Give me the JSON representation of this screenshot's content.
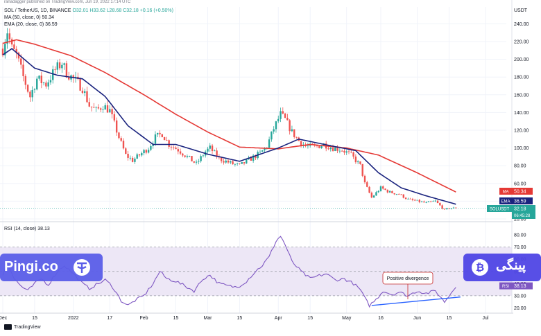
{
  "top_caption": "ranadagger published on TradingView.com, Jun 19, 2022 17:14 UTC",
  "header": {
    "symbol_line": "SOL / TetherUS, 1D, BINANCE",
    "ohlc": "O32.01 H33.62 L28.68 C32.18 +0.16 (+0.50%)",
    "ma_line": "MA (50, close, 0) 50.34",
    "ema_line": "EMA (20, close, 0) 36.59"
  },
  "rsi_header": "RSI (14, close) 38.13",
  "footer": {
    "tv_logo": "TradingView"
  },
  "watermark": {
    "left": "Pingi.co",
    "right": "پینگی"
  },
  "colors": {
    "up": "#26a69a",
    "down": "#ef5350",
    "ma": "#e53935",
    "ema": "#1a237e",
    "rsi": "#7e57c2",
    "band": "#ede7f6",
    "trendline": "#2962ff",
    "grid": "#f0f3fa",
    "banner_left": "#5b5ee8",
    "banner_right": "#4f46e5"
  },
  "chart_data": [
    {
      "type": "candlestick",
      "title": "SOL / TetherUS, 1D, BINANCE",
      "currency": "USDT",
      "ylim": [
        20,
        245
      ],
      "y_ticks": [
        20,
        40,
        60,
        80,
        100,
        120,
        140,
        160,
        180,
        200,
        220,
        240
      ],
      "x_tick_labels": [
        "Dec",
        "15",
        "2022",
        "17",
        "Feb",
        "15",
        "Mar",
        "15",
        "Apr",
        "15",
        "May",
        "16",
        "Jun",
        "15",
        "Jul"
      ],
      "x_tick_dates": [
        "2021-12-01",
        "2021-12-15",
        "2022-01-01",
        "2022-01-17",
        "2022-02-01",
        "2022-02-15",
        "2022-03-01",
        "2022-03-15",
        "2022-04-01",
        "2022-04-15",
        "2022-05-01",
        "2022-05-16",
        "2022-06-01",
        "2022-06-15",
        "2022-07-01"
      ],
      "x_range": [
        "2021-12-01",
        "2022-07-01"
      ],
      "close_anchors": [
        [
          "2021-12-01",
          212
        ],
        [
          "2021-12-03",
          232
        ],
        [
          "2021-12-05",
          212
        ],
        [
          "2021-12-07",
          205
        ],
        [
          "2021-12-10",
          180
        ],
        [
          "2021-12-13",
          158
        ],
        [
          "2021-12-16",
          178
        ],
        [
          "2021-12-20",
          172
        ],
        [
          "2021-12-24",
          188
        ],
        [
          "2021-12-27",
          196
        ],
        [
          "2021-12-29",
          185
        ],
        [
          "2022-01-01",
          178
        ],
        [
          "2022-01-05",
          168
        ],
        [
          "2022-01-08",
          148
        ],
        [
          "2022-01-11",
          142
        ],
        [
          "2022-01-14",
          148
        ],
        [
          "2022-01-17",
          142
        ],
        [
          "2022-01-21",
          112
        ],
        [
          "2022-01-24",
          92
        ],
        [
          "2022-01-27",
          86
        ],
        [
          "2022-01-30",
          92
        ],
        [
          "2022-02-03",
          100
        ],
        [
          "2022-02-06",
          112
        ],
        [
          "2022-02-09",
          116
        ],
        [
          "2022-02-12",
          104
        ],
        [
          "2022-02-16",
          98
        ],
        [
          "2022-02-20",
          90
        ],
        [
          "2022-02-24",
          82
        ],
        [
          "2022-02-28",
          96
        ],
        [
          "2022-03-02",
          100
        ],
        [
          "2022-03-06",
          88
        ],
        [
          "2022-03-12",
          82
        ],
        [
          "2022-03-15",
          80
        ],
        [
          "2022-03-20",
          88
        ],
        [
          "2022-03-24",
          94
        ],
        [
          "2022-03-27",
          102
        ],
        [
          "2022-03-30",
          122
        ],
        [
          "2022-04-02",
          138
        ],
        [
          "2022-04-04",
          132
        ],
        [
          "2022-04-07",
          118
        ],
        [
          "2022-04-10",
          108
        ],
        [
          "2022-04-13",
          102
        ],
        [
          "2022-04-17",
          101
        ],
        [
          "2022-04-21",
          104
        ],
        [
          "2022-04-25",
          100
        ],
        [
          "2022-04-29",
          98
        ],
        [
          "2022-05-03",
          92
        ],
        [
          "2022-05-07",
          80
        ],
        [
          "2022-05-09",
          60
        ],
        [
          "2022-05-12",
          44
        ],
        [
          "2022-05-16",
          55
        ],
        [
          "2022-05-20",
          50
        ],
        [
          "2022-05-24",
          48
        ],
        [
          "2022-05-28",
          42
        ],
        [
          "2022-06-01",
          40
        ],
        [
          "2022-06-05",
          38
        ],
        [
          "2022-06-09",
          40
        ],
        [
          "2022-06-13",
          30
        ],
        [
          "2022-06-15",
          32
        ],
        [
          "2022-06-18",
          32.18
        ]
      ],
      "indicators": [
        {
          "name": "MA (50, close, 0)",
          "value": 50.34,
          "color": "#e53935",
          "anchors": [
            [
              "2021-12-01",
              218
            ],
            [
              "2021-12-07",
              222
            ],
            [
              "2021-12-15",
              217
            ],
            [
              "2021-12-31",
              204
            ],
            [
              "2022-01-15",
              185
            ],
            [
              "2022-02-01",
              160
            ],
            [
              "2022-02-15",
              138
            ],
            [
              "2022-03-01",
              118
            ],
            [
              "2022-03-15",
              101
            ],
            [
              "2022-04-01",
              99
            ],
            [
              "2022-04-15",
              104
            ],
            [
              "2022-05-01",
              100
            ],
            [
              "2022-05-15",
              92
            ],
            [
              "2022-06-01",
              72
            ],
            [
              "2022-06-18",
              50.34
            ]
          ]
        },
        {
          "name": "EMA (20, close, 0)",
          "value": 36.59,
          "color": "#1a237e",
          "anchors": [
            [
              "2021-12-01",
              205
            ],
            [
              "2021-12-05",
              212
            ],
            [
              "2021-12-15",
              190
            ],
            [
              "2021-12-25",
              182
            ],
            [
              "2022-01-05",
              178
            ],
            [
              "2022-01-15",
              158
            ],
            [
              "2022-01-25",
              125
            ],
            [
              "2022-02-05",
              104
            ],
            [
              "2022-02-15",
              104
            ],
            [
              "2022-03-01",
              93
            ],
            [
              "2022-03-15",
              85
            ],
            [
              "2022-04-01",
              100
            ],
            [
              "2022-04-10",
              110
            ],
            [
              "2022-04-25",
              102
            ],
            [
              "2022-05-05",
              97
            ],
            [
              "2022-05-15",
              72
            ],
            [
              "2022-05-25",
              55
            ],
            [
              "2022-06-05",
              46
            ],
            [
              "2022-06-18",
              36.59
            ]
          ]
        }
      ],
      "last_price": {
        "symbol": "SOLUSDT",
        "price": 32.18,
        "countdown": "06:45:28"
      },
      "badges": [
        {
          "label": "MA",
          "value": 50.34,
          "color": "#e53935"
        },
        {
          "label": "EMA",
          "value": 36.59,
          "color": "#1a237e"
        }
      ]
    },
    {
      "type": "line",
      "title": "RSI (14, close)",
      "ylim": [
        18,
        84
      ],
      "y_ticks": [
        20,
        30,
        40,
        50,
        60,
        70,
        80
      ],
      "band": [
        30,
        70
      ],
      "current": 38.13,
      "series": [
        {
          "name": "RSI",
          "anchors": [
            [
              "2021-12-01",
              47
            ],
            [
              "2021-12-03",
              58
            ],
            [
              "2021-12-06",
              44
            ],
            [
              "2021-12-09",
              38
            ],
            [
              "2021-12-12",
              34
            ],
            [
              "2021-12-15",
              40
            ],
            [
              "2021-12-18",
              44
            ],
            [
              "2021-12-21",
              39
            ],
            [
              "2021-12-25",
              50
            ],
            [
              "2021-12-28",
              55
            ],
            [
              "2022-01-01",
              48
            ],
            [
              "2022-01-05",
              40
            ],
            [
              "2022-01-08",
              36
            ],
            [
              "2022-01-12",
              40
            ],
            [
              "2022-01-15",
              43
            ],
            [
              "2022-01-18",
              38
            ],
            [
              "2022-01-22",
              26
            ],
            [
              "2022-01-25",
              22
            ],
            [
              "2022-01-28",
              26
            ],
            [
              "2022-02-01",
              30
            ],
            [
              "2022-02-05",
              40
            ],
            [
              "2022-02-08",
              50
            ],
            [
              "2022-02-11",
              44
            ],
            [
              "2022-02-15",
              42
            ],
            [
              "2022-02-19",
              38
            ],
            [
              "2022-02-23",
              34
            ],
            [
              "2022-02-27",
              44
            ],
            [
              "2022-03-02",
              47
            ],
            [
              "2022-03-06",
              40
            ],
            [
              "2022-03-10",
              38
            ],
            [
              "2022-03-14",
              37
            ],
            [
              "2022-03-18",
              42
            ],
            [
              "2022-03-22",
              50
            ],
            [
              "2022-03-25",
              55
            ],
            [
              "2022-03-28",
              62
            ],
            [
              "2022-03-31",
              75
            ],
            [
              "2022-04-02",
              79
            ],
            [
              "2022-04-04",
              72
            ],
            [
              "2022-04-07",
              58
            ],
            [
              "2022-04-11",
              50
            ],
            [
              "2022-04-15",
              44
            ],
            [
              "2022-04-18",
              46
            ],
            [
              "2022-04-22",
              48
            ],
            [
              "2022-04-26",
              43
            ],
            [
              "2022-04-30",
              44
            ],
            [
              "2022-05-04",
              40
            ],
            [
              "2022-05-07",
              35
            ],
            [
              "2022-05-09",
              28
            ],
            [
              "2022-05-11",
              22
            ],
            [
              "2022-05-14",
              27
            ],
            [
              "2022-05-17",
              34
            ],
            [
              "2022-05-21",
              31
            ],
            [
              "2022-05-24",
              33
            ],
            [
              "2022-05-28",
              30
            ],
            [
              "2022-06-01",
              34
            ],
            [
              "2022-06-05",
              32
            ],
            [
              "2022-06-09",
              34
            ],
            [
              "2022-06-13",
              25
            ],
            [
              "2022-06-15",
              30
            ],
            [
              "2022-06-18",
              38.13
            ]
          ]
        }
      ],
      "annotation": {
        "text": "Positive divergence",
        "trendline": [
          [
            "2022-05-12",
            22
          ],
          [
            "2022-06-20",
            29
          ]
        ]
      }
    }
  ]
}
